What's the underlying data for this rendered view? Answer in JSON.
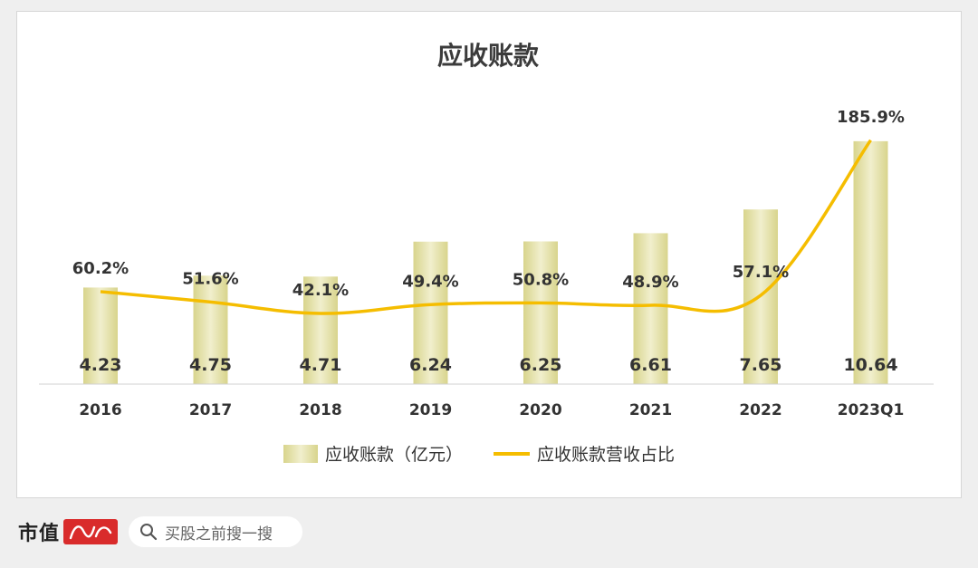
{
  "chart_data": {
    "type": "bar+line",
    "title": "应收账款",
    "categories": [
      "2016",
      "2017",
      "2018",
      "2019",
      "2020",
      "2021",
      "2022",
      "2023Q1"
    ],
    "series": [
      {
        "name": "应收账款（亿元）",
        "type": "bar",
        "values": [
          4.23,
          4.75,
          4.71,
          6.24,
          6.25,
          6.61,
          7.65,
          10.64
        ],
        "value_labels": [
          "4.23",
          "4.75",
          "4.71",
          "6.24",
          "6.25",
          "6.61",
          "7.65",
          "10.64"
        ],
        "color": "#e3e0a8"
      },
      {
        "name": "应收账款营收占比",
        "type": "line",
        "values": [
          60.2,
          51.6,
          42.1,
          49.4,
          50.8,
          48.9,
          57.1,
          185.9
        ],
        "value_labels": [
          "60.2%",
          "51.6%",
          "42.1%",
          "49.4%",
          "50.8%",
          "48.9%",
          "57.1%",
          "185.9%"
        ],
        "color": "#f5bd00"
      }
    ],
    "legend_position": "bottom",
    "grid": false
  },
  "footer": {
    "brand": "市值",
    "logo_text": "风云",
    "search_text": "买股之前搜一搜",
    "logo_color": "#d92b2b"
  },
  "watermark": "市值风云"
}
